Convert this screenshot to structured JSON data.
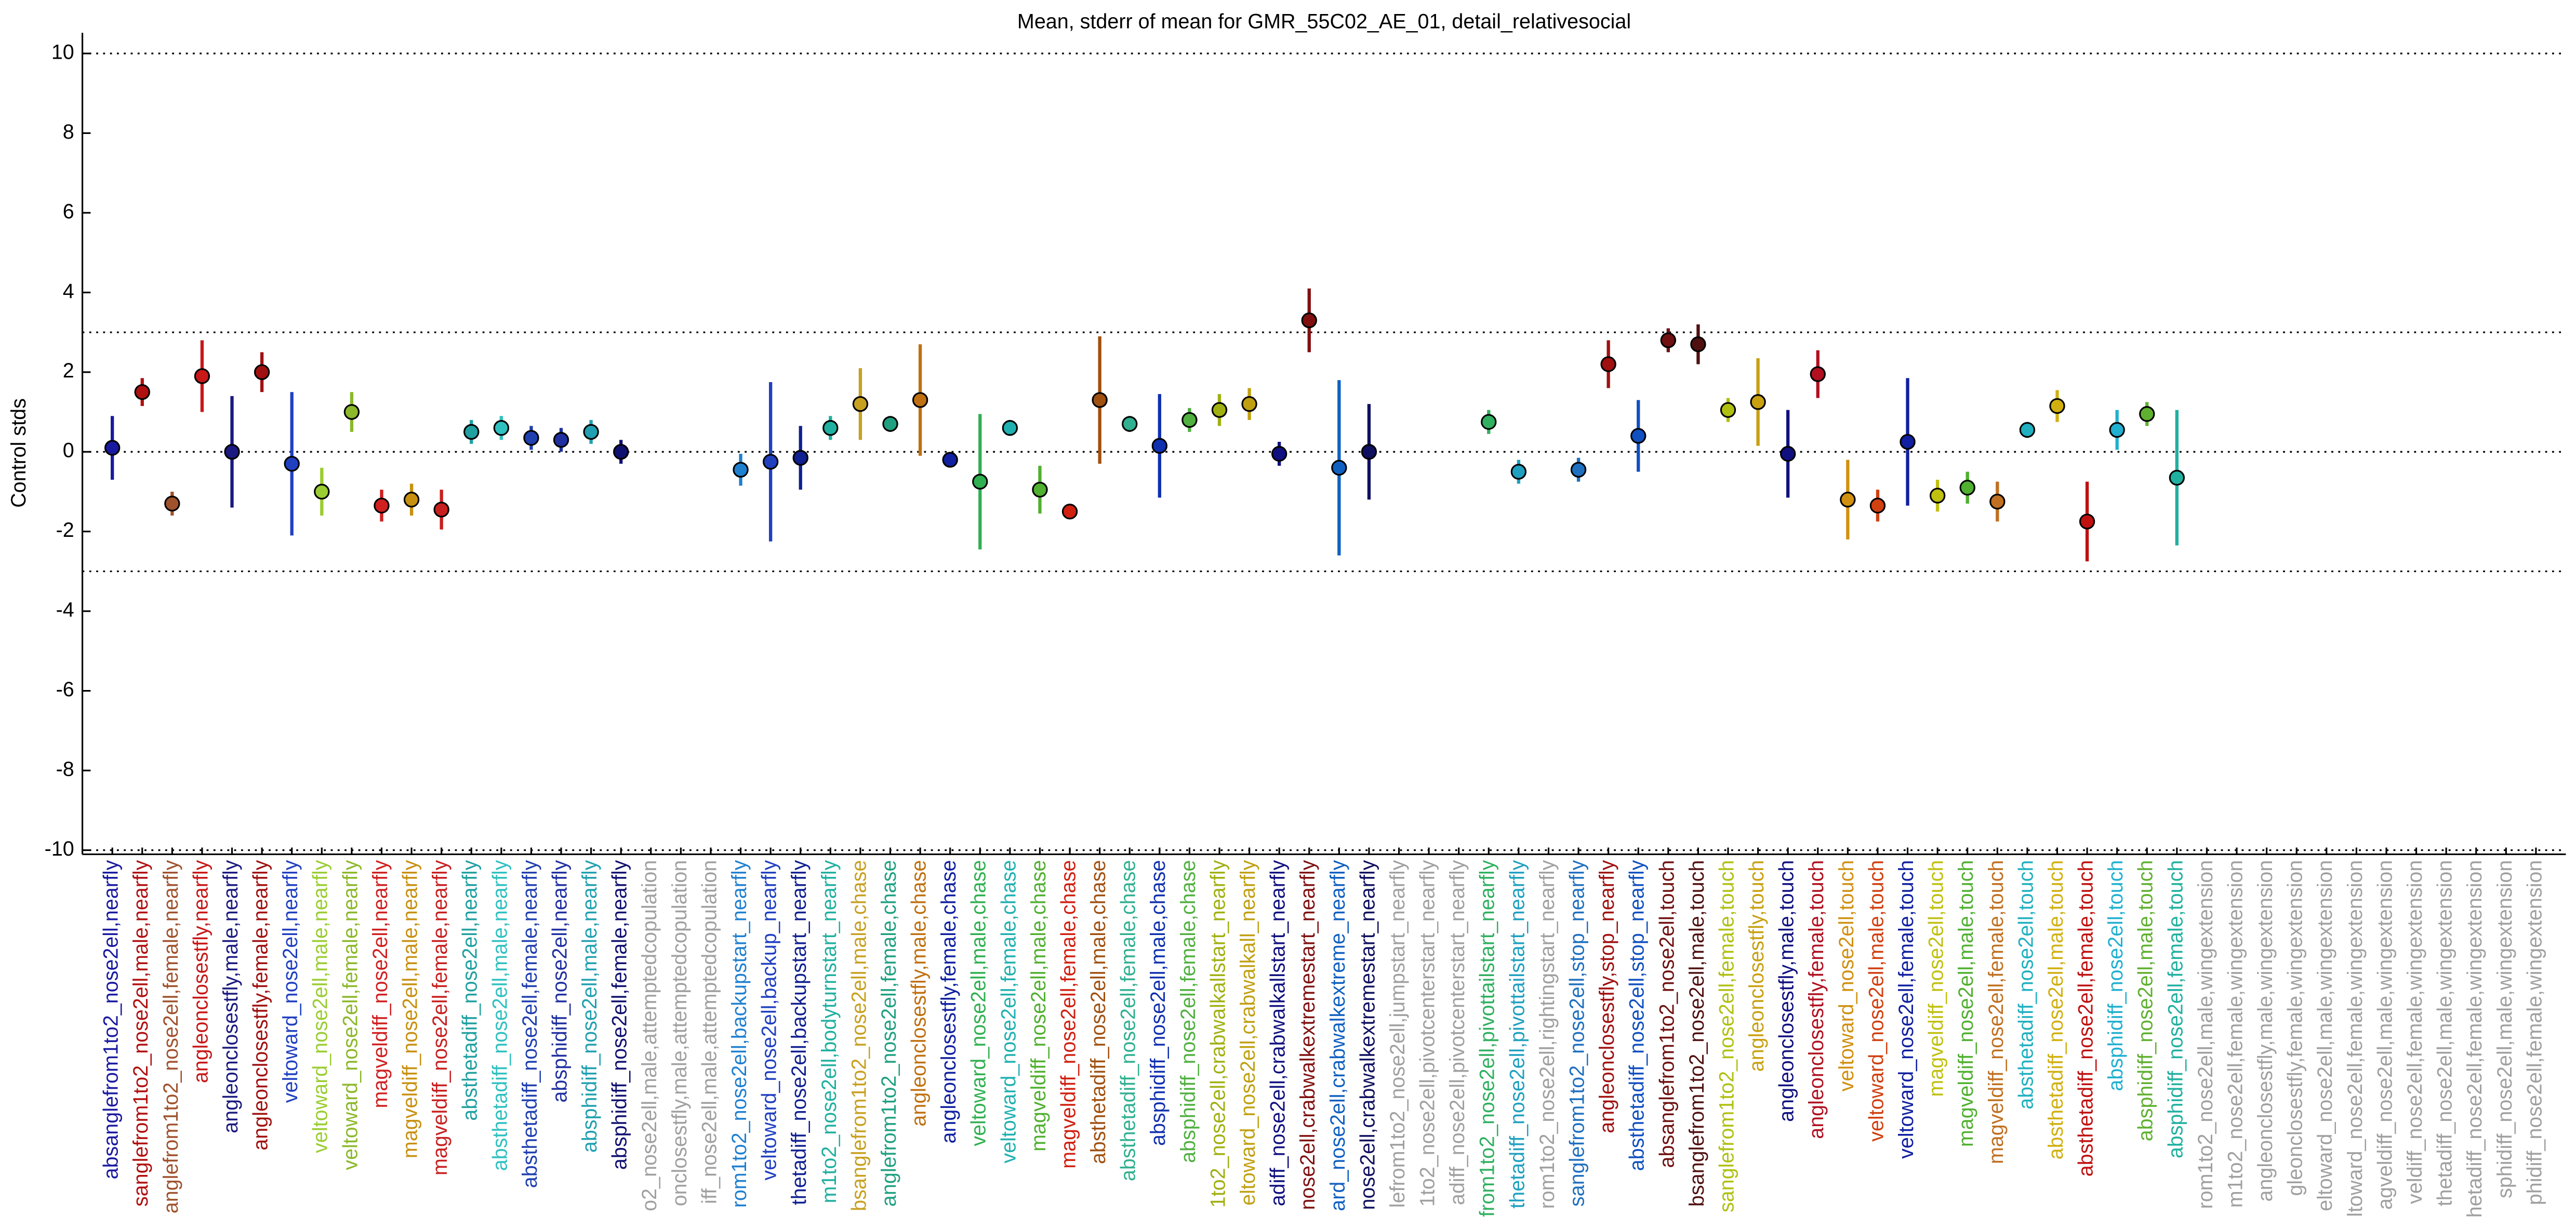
{
  "chart_data": {
    "type": "errorbar",
    "title": "Mean, stderr of mean for GMR_55C02_AE_01, detail_relativesocial",
    "y_label": "Control stds",
    "ylim": [
      -10.1,
      10.3
    ],
    "yticks": [
      -10,
      -8,
      -6,
      -4,
      -2,
      0,
      2,
      4,
      6,
      8,
      10
    ],
    "reference_lines": [
      10,
      3,
      0,
      -3,
      -10
    ],
    "categories": [
      "absanglefrom1to2_nose2ell,nearfly",
      "sanglefrom1to2_nose2ell,male,nearfly",
      "anglefrom1to2_nose2ell,female,nearfly",
      "angleonclosestfly,nearfly",
      "angleonclosestfly,male,nearfly",
      "angleonclosestfly,female,nearfly",
      "veltoward_nose2ell,nearfly",
      "veltoward_nose2ell,male,nearfly",
      "veltoward_nose2ell,female,nearfly",
      "magveldiff_nose2ell,nearfly",
      "magveldiff_nose2ell,male,nearfly",
      "magveldiff_nose2ell,female,nearfly",
      "absthetadiff_nose2ell,nearfly",
      "absthetadiff_nose2ell,male,nearfly",
      "absthetadiff_nose2ell,female,nearfly",
      "absphidiff_nose2ell,nearfly",
      "absphidiff_nose2ell,male,nearfly",
      "absphidiff_nose2ell,female,nearfly",
      "o2_nose2ell,male,attemptedcopulation",
      "onclosestfly,male,attemptedcopulation",
      "iff_nose2ell,male,attemptedcopulation",
      "rom1to2_nose2ell,backupstart_nearfly",
      "veltoward_nose2ell,backup_nearfly",
      "thetadiff_nose2ell,backupstart_nearfly",
      "m1to2_nose2ell,bodyturnstart_nearfly",
      "bsanglefrom1to2_nose2ell,male,chase",
      "anglefrom1to2_nose2ell,female,chase",
      "angleonclosestfly,male,chase",
      "angleonclosestfly,female,chase",
      "veltoward_nose2ell,male,chase",
      "veltoward_nose2ell,female,chase",
      "magveldiff_nose2ell,male,chase",
      "magveldiff_nose2ell,female,chase",
      "absthetadiff_nose2ell,male,chase",
      "absthetadiff_nose2ell,female,chase",
      "absphidiff_nose2ell,male,chase",
      "absphidiff_nose2ell,female,chase",
      "1to2_nose2ell,crabwalkallstart_nearfly",
      "eltoward_nose2ell,crabwalkall_nearfly",
      "adiff_nose2ell,crabwalkallstart_nearfly",
      "nose2ell,crabwalkextremestart_nearfly",
      "ard_nose2ell,crabwalkextreme_nearfly",
      "nose2ell,crabwalkextremestart_nearfly",
      "lefrom1to2_nose2ell,jumpstart_nearfly",
      "1to2_nose2ell,pivotcenterstart_nearfly",
      "adiff_nose2ell,pivotcenterstart_nearfly",
      "from1to2_nose2ell,pivottailstart_nearfly",
      "thetadiff_nose2ell,pivottailstart_nearfly",
      "rom1to2_nose2ell,rightingstart_nearfly",
      "sanglefrom1to2_nose2ell,stop_nearfly",
      "angleonclosestfly,stop_nearfly",
      "absthetadiff_nose2ell,stop_nearfly",
      "absanglefrom1to2_nose2ell,touch",
      "bsanglefrom1to2_nose2ell,male,touch",
      "sanglefrom1to2_nose2ell,female,touch",
      "angleonclosestfly,touch",
      "angleonclosestfly,male,touch",
      "angleonclosestfly,female,touch",
      "veltoward_nose2ell,touch",
      "veltoward_nose2ell,male,touch",
      "veltoward_nose2ell,female,touch",
      "magveldiff_nose2ell,touch",
      "magveldiff_nose2ell,male,touch",
      "magveldiff_nose2ell,female,touch",
      "absthetadiff_nose2ell,touch",
      "absthetadiff_nose2ell,male,touch",
      "absthetadiff_nose2ell,female,touch",
      "absphidiff_nose2ell,touch",
      "absphidiff_nose2ell,male,touch",
      "absphidiff_nose2ell,female,touch",
      "rom1to2_nose2ell,male,wingextension",
      "m1to2_nose2ell,female,wingextension",
      "angleonclosestfly,male,wingextension",
      "gleonclosestfly,female,wingextension",
      "eltoward_nose2ell,male,wingextension",
      "ltoward_nose2ell,female,wingextension",
      "agveldiff_nose2ell,male,wingextension",
      "veldiff_nose2ell,female,wingextension",
      "thetadiff_nose2ell,male,wingextension",
      "hetadiff_nose2ell,female,wingextension",
      "sphidiff_nose2ell,male,wingextension",
      "phidiff_nose2ell,female,wingextension"
    ],
    "values": [
      0.1,
      1.5,
      -1.3,
      1.9,
      0,
      2.0,
      -0.3,
      -1.0,
      1.0,
      -1.35,
      -1.2,
      -1.45,
      0.5,
      0.6,
      0.35,
      0.3,
      0.5,
      0,
      null,
      null,
      null,
      -0.45,
      -0.25,
      -0.15,
      0.6,
      1.2,
      0.7,
      1.3,
      -0.2,
      -0.75,
      0.6,
      -0.95,
      -1.5,
      1.3,
      0.7,
      0.15,
      0.8,
      1.05,
      1.2,
      -0.05,
      3.3,
      -0.4,
      0,
      null,
      null,
      null,
      0.75,
      -0.5,
      null,
      -0.45,
      2.2,
      0.4,
      2.8,
      2.7,
      1.05,
      1.25,
      -0.05,
      1.95,
      -1.2,
      -1.35,
      0.25,
      -1.1,
      -0.9,
      -1.25,
      0.55,
      1.15,
      -1.75,
      0.55,
      0.95,
      -0.65,
      null,
      null,
      null,
      null,
      null,
      null,
      null,
      null,
      null,
      null,
      null,
      null
    ],
    "errors": [
      0.8,
      0.35,
      0.3,
      0.9,
      1.4,
      0.5,
      1.8,
      0.6,
      0.5,
      0.4,
      0.4,
      0.5,
      0.3,
      0.3,
      0.3,
      0.3,
      0.3,
      0.3,
      null,
      null,
      null,
      0.4,
      2.0,
      0.8,
      0.3,
      0.9,
      0.2,
      1.4,
      0,
      1.7,
      0.2,
      0.6,
      0.1,
      1.6,
      0.2,
      1.3,
      0.3,
      0.4,
      0.4,
      0.3,
      0.8,
      2.2,
      1.2,
      null,
      null,
      null,
      0.3,
      0.3,
      null,
      0.3,
      0.6,
      0.9,
      0.3,
      0.5,
      0.3,
      1.1,
      1.1,
      0.6,
      1.0,
      0.4,
      1.6,
      0.4,
      0.4,
      0.5,
      0.2,
      0.4,
      1.0,
      0.5,
      0.3,
      1.7,
      null,
      null,
      null,
      null,
      null,
      null,
      null,
      null,
      null,
      null,
      null,
      null
    ],
    "colors": [
      "#1a1aa0",
      "#b01010",
      "#a0522d",
      "#c81818",
      "#1a1a80",
      "#a01010",
      "#2040c0",
      "#9acd32",
      "#8cb82a",
      "#d02020",
      "#c89010",
      "#c82020",
      "#20a0a0",
      "#30c0c0",
      "#2040b0",
      "#2030a0",
      "#20a0b0",
      "#101070",
      "#a0a0a0",
      "#a0a0a0",
      "#a0a0a0",
      "#2080d0",
      "#2040c0",
      "#102090",
      "#20b0a0",
      "#c8a020",
      "#20a080",
      "#c07010",
      "#1020a0",
      "#30b050",
      "#20b0b0",
      "#50b030",
      "#d02010",
      "#a05010",
      "#30b090",
      "#1030b0",
      "#50b040",
      "#a0b010",
      "#c0a010",
      "#101080",
      "#801010",
      "#1060c0",
      "#101060",
      "#a0a0a0",
      "#a0a0a0",
      "#a0a0a0",
      "#30b060",
      "#20a0c0",
      "#a0a0a0",
      "#2070c0",
      "#a01010",
      "#1050c0",
      "#701010",
      "#501010",
      "#b0c010",
      "#c8a010",
      "#101080",
      "#b01020",
      "#d09010",
      "#d04010",
      "#1020a0",
      "#c0c010",
      "#50b030",
      "#c07020",
      "#20b0c0",
      "#d0b010",
      "#c01010",
      "#20b0d0",
      "#60b030",
      "#20b0a0",
      "#a0a0a0",
      "#a0a0a0",
      "#a0a0a0",
      "#a0a0a0",
      "#a0a0a0",
      "#a0a0a0",
      "#a0a0a0",
      "#a0a0a0",
      "#a0a0a0",
      "#a0a0a0",
      "#a0a0a0",
      "#a0a0a0"
    ]
  }
}
